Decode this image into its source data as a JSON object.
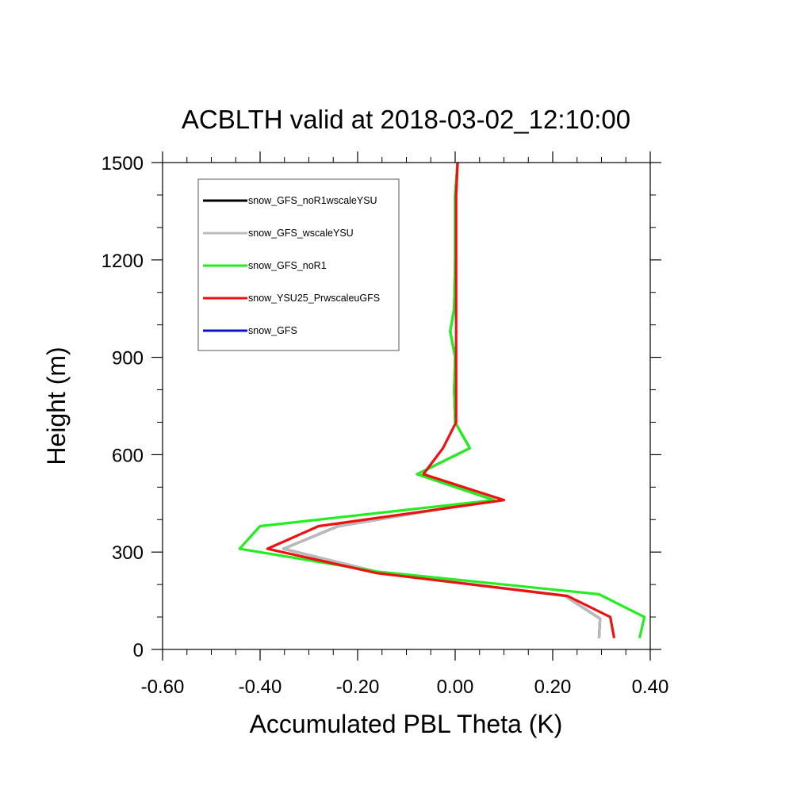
{
  "chart_data": {
    "type": "line",
    "title": "ACBLTH valid at 2018-03-02_12:10:00",
    "xlabel": "Accumulated PBL Theta (K)",
    "ylabel": "Height (m)",
    "xlim": [
      -0.6,
      0.4
    ],
    "ylim": [
      0,
      1500
    ],
    "x_ticks": [
      -0.6,
      -0.4,
      -0.2,
      0.0,
      0.2,
      0.4
    ],
    "x_tick_labels": [
      "-0.60",
      "-0.40",
      "-0.20",
      "0.00",
      "0.20",
      "0.40"
    ],
    "y_ticks": [
      0,
      300,
      600,
      900,
      1200,
      1500
    ],
    "y_tick_labels": [
      "0",
      "300",
      "600",
      "900",
      "1200",
      "1500"
    ],
    "legend_position": "top-left",
    "series": [
      {
        "name": "snow_GFS_noR1wscaleYSU",
        "color": "#000000",
        "points": [
          [
            0.295,
            35
          ],
          [
            0.297,
            95
          ],
          [
            0.225,
            165
          ],
          [
            -0.15,
            235
          ],
          [
            -0.352,
            310
          ],
          [
            -0.24,
            380
          ],
          [
            0.08,
            460
          ],
          [
            -0.078,
            540
          ],
          [
            0.03,
            620
          ],
          [
            0.0,
            700
          ],
          [
            -0.002,
            800
          ],
          [
            0.0,
            900
          ],
          [
            -0.01,
            980
          ],
          [
            -0.002,
            1050
          ],
          [
            0.0,
            1200
          ],
          [
            0.0,
            1400
          ],
          [
            0.005,
            1500
          ]
        ]
      },
      {
        "name": "snow_GFS_wscaleYSU",
        "color": "#bbbbbb",
        "points": [
          [
            0.295,
            35
          ],
          [
            0.297,
            95
          ],
          [
            0.225,
            165
          ],
          [
            -0.15,
            235
          ],
          [
            -0.352,
            310
          ],
          [
            -0.24,
            380
          ],
          [
            0.08,
            460
          ],
          [
            -0.078,
            540
          ],
          [
            0.03,
            620
          ],
          [
            0.0,
            700
          ],
          [
            -0.002,
            800
          ],
          [
            0.0,
            900
          ],
          [
            -0.01,
            980
          ],
          [
            -0.002,
            1050
          ],
          [
            0.0,
            1200
          ],
          [
            0.0,
            1400
          ],
          [
            0.005,
            1500
          ]
        ]
      },
      {
        "name": "snow_GFS_noR1",
        "color": "#22ee22",
        "points": [
          [
            0.378,
            35
          ],
          [
            0.388,
            100
          ],
          [
            0.295,
            170
          ],
          [
            0.23,
            180
          ],
          [
            -0.16,
            240
          ],
          [
            -0.442,
            310
          ],
          [
            -0.4,
            380
          ],
          [
            0.08,
            460
          ],
          [
            -0.078,
            540
          ],
          [
            0.03,
            620
          ],
          [
            0.0,
            700
          ],
          [
            -0.002,
            800
          ],
          [
            0.0,
            900
          ],
          [
            -0.01,
            980
          ],
          [
            -0.002,
            1050
          ],
          [
            0.0,
            1200
          ],
          [
            0.0,
            1400
          ],
          [
            0.005,
            1500
          ]
        ]
      },
      {
        "name": "snow_YSU25_PrwscaleuGFS",
        "color": "#ee1111",
        "points": [
          [
            0.326,
            35
          ],
          [
            0.318,
            100
          ],
          [
            0.23,
            165
          ],
          [
            -0.16,
            235
          ],
          [
            -0.385,
            310
          ],
          [
            -0.28,
            380
          ],
          [
            0.1,
            460
          ],
          [
            -0.065,
            540
          ],
          [
            -0.025,
            620
          ],
          [
            0.002,
            700
          ],
          [
            0.002,
            800
          ],
          [
            0.002,
            900
          ],
          [
            0.002,
            1000
          ],
          [
            0.002,
            1200
          ],
          [
            0.002,
            1400
          ],
          [
            0.005,
            1500
          ]
        ]
      },
      {
        "name": "snow_GFS",
        "color": "#1111cc",
        "points": []
      }
    ]
  }
}
